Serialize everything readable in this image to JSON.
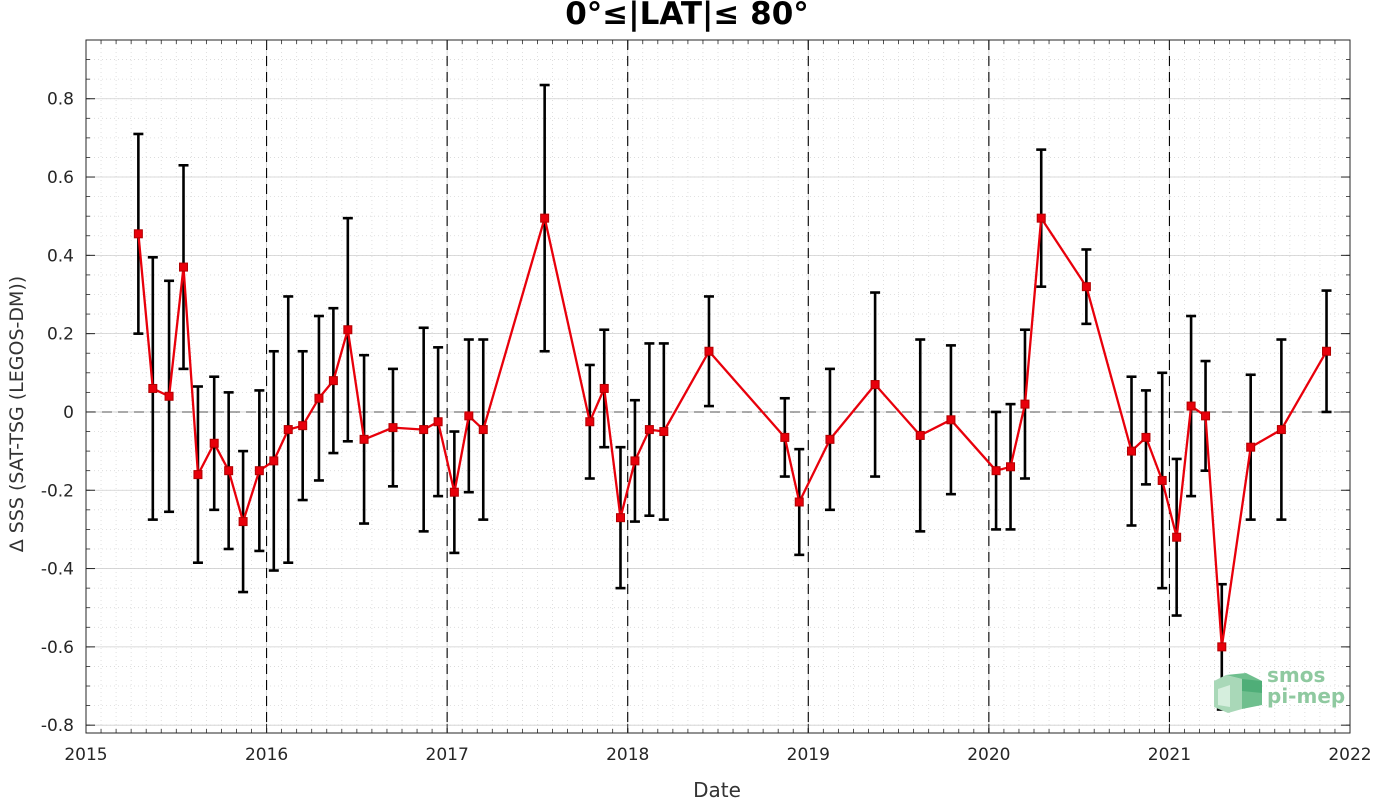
{
  "chart_data": {
    "type": "line",
    "title": "0°≤|LAT|≤ 80°",
    "xlabel": "Date",
    "ylabel": "Δ SSS (SAT-TSG (LEGOS-DM))",
    "xlim": [
      2015,
      2022
    ],
    "ylim": [
      -0.82,
      0.95
    ],
    "xticks": [
      2015,
      2016,
      2017,
      2018,
      2019,
      2020,
      2021,
      2022
    ],
    "yticks": [
      -0.8,
      -0.6,
      -0.4,
      -0.2,
      0,
      0.2,
      0.4,
      0.6,
      0.8
    ],
    "ytick_labels": [
      "-0.8",
      "-0.6",
      "-0.4",
      "-0.2",
      "0",
      "0.2",
      "0.4",
      "0.6",
      "0.8"
    ],
    "year_dividers": [
      2016,
      2017,
      2018,
      2019,
      2020,
      2021
    ],
    "zero_line": 0,
    "grid": true,
    "colors": {
      "series": "#e8000b",
      "errorbar": "#000000",
      "grid": "#cccccc"
    },
    "series": [
      {
        "marker": "square",
        "x": [
          2015.29,
          2015.37,
          2015.46,
          2015.54,
          2015.62,
          2015.71,
          2015.79,
          2015.87,
          2015.96,
          2016.04,
          2016.12,
          2016.2,
          2016.29,
          2016.37,
          2016.45,
          2016.54,
          2016.7,
          2016.87,
          2016.95,
          2017.04,
          2017.12,
          2017.2,
          2017.54,
          2017.79,
          2017.87,
          2017.96,
          2018.04,
          2018.12,
          2018.2,
          2018.45,
          2018.87,
          2018.95,
          2019.12,
          2019.37,
          2019.62,
          2019.79,
          2020.04,
          2020.12,
          2020.2,
          2020.29,
          2020.54,
          2020.79,
          2020.87,
          2020.96,
          2021.04,
          2021.12,
          2021.2,
          2021.29,
          2021.45,
          2021.62,
          2021.87
        ],
        "y": [
          0.455,
          0.06,
          0.04,
          0.37,
          -0.16,
          -0.08,
          -0.15,
          -0.28,
          -0.15,
          -0.125,
          -0.045,
          -0.035,
          0.035,
          0.08,
          0.21,
          -0.07,
          -0.04,
          -0.045,
          -0.025,
          -0.205,
          -0.01,
          -0.045,
          0.495,
          -0.025,
          0.06,
          -0.27,
          -0.125,
          -0.045,
          -0.05,
          0.155,
          -0.065,
          -0.23,
          -0.07,
          0.07,
          -0.06,
          -0.02,
          -0.15,
          -0.14,
          0.02,
          0.495,
          0.32,
          -0.1,
          -0.065,
          -0.175,
          -0.32,
          0.015,
          -0.01,
          -0.6,
          -0.09,
          -0.045,
          0.155
        ],
        "err": [
          0.255,
          0.335,
          0.295,
          0.26,
          0.225,
          0.17,
          0.2,
          0.18,
          0.205,
          0.28,
          0.34,
          0.19,
          0.21,
          0.185,
          0.285,
          0.215,
          0.15,
          0.26,
          0.19,
          0.155,
          0.195,
          0.23,
          0.34,
          0.145,
          0.15,
          0.18,
          0.155,
          0.22,
          0.225,
          0.14,
          0.1,
          0.135,
          0.18,
          0.235,
          0.245,
          0.19,
          0.15,
          0.16,
          0.19,
          0.175,
          0.095,
          0.19,
          0.12,
          0.275,
          0.2,
          0.23,
          0.14,
          0.16,
          0.185,
          0.23,
          0.155
        ]
      }
    ],
    "watermark": {
      "line1": "smos",
      "line2": "pi-mep"
    }
  }
}
